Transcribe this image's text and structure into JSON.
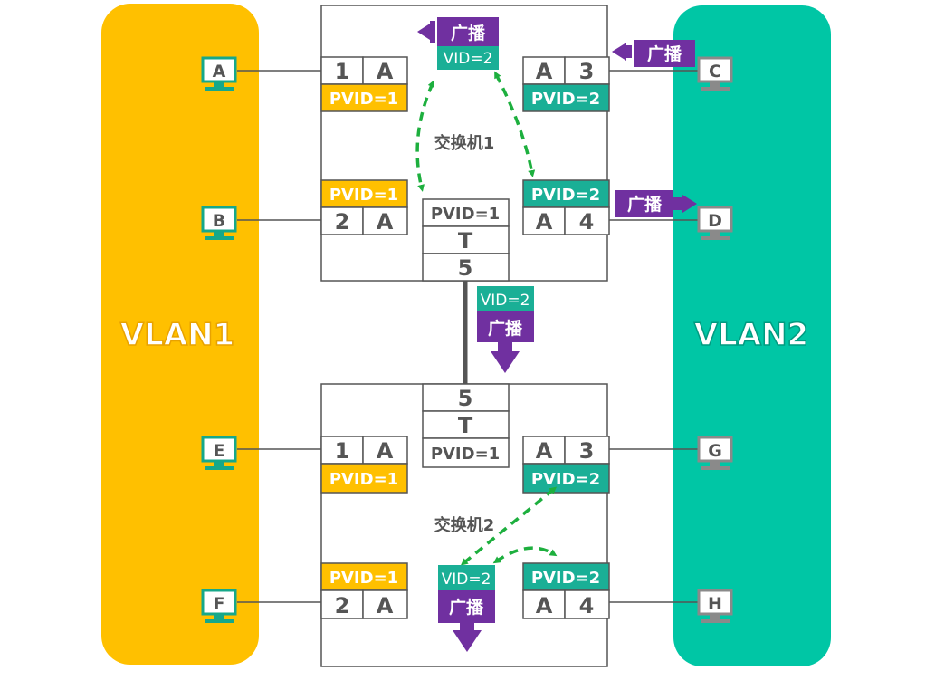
{
  "colors": {
    "vlan1": "#FFC000",
    "vlan2": "#00C6A5",
    "broadcast": "#7030A0",
    "vid_box": "#1AAF96",
    "pvid2": "#1AAF96",
    "arrow_dashed": "#1DAF3E",
    "link": "#555555",
    "port_text": "#555555"
  },
  "vlans": [
    {
      "label": "VLAN1"
    },
    {
      "label": "VLAN2"
    }
  ],
  "hosts": [
    {
      "label": "A",
      "icon": "computer-icon"
    },
    {
      "label": "B",
      "icon": "computer-icon"
    },
    {
      "label": "C",
      "icon": "computer-icon"
    },
    {
      "label": "D",
      "icon": "computer-icon"
    },
    {
      "label": "E",
      "icon": "computer-icon"
    },
    {
      "label": "F",
      "icon": "computer-icon"
    },
    {
      "label": "G",
      "icon": "computer-icon"
    },
    {
      "label": "H",
      "icon": "computer-icon"
    }
  ],
  "switch1": {
    "label": "交换机1",
    "p1": {
      "num": "1",
      "type": "A",
      "pvid": "PVID=1"
    },
    "p2": {
      "num": "2",
      "type": "A",
      "pvid": "PVID=1"
    },
    "p3": {
      "num": "3",
      "type": "A",
      "pvid": "PVID=2"
    },
    "p4": {
      "num": "4",
      "type": "A",
      "pvid": "PVID=2"
    },
    "p5": {
      "num": "5",
      "type": "T",
      "pvid": "PVID=1"
    }
  },
  "switch2": {
    "label": "交换机2",
    "p1": {
      "num": "1",
      "type": "A",
      "pvid": "PVID=1"
    },
    "p2": {
      "num": "2",
      "type": "A",
      "pvid": "PVID=1"
    },
    "p3": {
      "num": "3",
      "type": "A",
      "pvid": "PVID=2"
    },
    "p4": {
      "num": "4",
      "type": "A",
      "pvid": "PVID=2"
    },
    "p5": {
      "num": "5",
      "type": "T",
      "pvid": "PVID=1"
    }
  },
  "frames": {
    "broadcast": "广播",
    "vid": "VID=2"
  }
}
